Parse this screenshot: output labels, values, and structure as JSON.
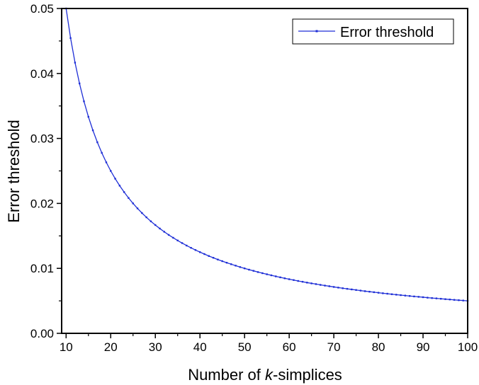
{
  "chart_data": {
    "type": "line",
    "xlabel_prefix": "Number of ",
    "xlabel_italic": "k",
    "xlabel_suffix": "-simplices",
    "ylabel": "Error threshold",
    "xlim": [
      9,
      100
    ],
    "ylim": [
      0,
      0.05
    ],
    "x_ticks": [
      "10",
      "20",
      "30",
      "40",
      "50",
      "60",
      "70",
      "80",
      "90",
      "100"
    ],
    "y_ticks": [
      "0.00",
      "0.01",
      "0.02",
      "0.03",
      "0.04",
      "0.05"
    ],
    "legend_position": "top-right",
    "grid": false,
    "series": [
      {
        "name": "Error threshold",
        "color": "#1f2fd6",
        "x": [
          10,
          11,
          12,
          13,
          14,
          15,
          16,
          17,
          18,
          19,
          20,
          21,
          22,
          23,
          24,
          25,
          26,
          27,
          28,
          29,
          30,
          31,
          32,
          33,
          34,
          35,
          36,
          37,
          38,
          39,
          40,
          41,
          42,
          43,
          44,
          45,
          46,
          47,
          48,
          49,
          50,
          51,
          52,
          53,
          54,
          55,
          56,
          57,
          58,
          59,
          60,
          61,
          62,
          63,
          64,
          65,
          66,
          67,
          68,
          69,
          70,
          71,
          72,
          73,
          74,
          75,
          76,
          77,
          78,
          79,
          80,
          81,
          82,
          83,
          84,
          85,
          86,
          87,
          88,
          89,
          90,
          91,
          92,
          93,
          94,
          95,
          96,
          97,
          98,
          99,
          100
        ],
        "y": [
          0.05,
          0.04545,
          0.04167,
          0.03846,
          0.03571,
          0.03333,
          0.03125,
          0.02941,
          0.02778,
          0.02632,
          0.025,
          0.02381,
          0.02273,
          0.02174,
          0.02083,
          0.02,
          0.01923,
          0.01852,
          0.01786,
          0.01724,
          0.01667,
          0.01613,
          0.01563,
          0.01515,
          0.01471,
          0.01429,
          0.01389,
          0.01351,
          0.01316,
          0.01282,
          0.0125,
          0.0122,
          0.0119,
          0.01163,
          0.01136,
          0.01111,
          0.01087,
          0.01064,
          0.01042,
          0.0102,
          0.01,
          0.0098,
          0.00962,
          0.00943,
          0.00926,
          0.00909,
          0.00893,
          0.00877,
          0.00862,
          0.00847,
          0.00833,
          0.0082,
          0.00806,
          0.00794,
          0.00781,
          0.00769,
          0.00758,
          0.00746,
          0.00735,
          0.00725,
          0.00714,
          0.00704,
          0.00694,
          0.00685,
          0.00676,
          0.00667,
          0.00658,
          0.00649,
          0.00641,
          0.00633,
          0.00625,
          0.00617,
          0.0061,
          0.00602,
          0.00595,
          0.00588,
          0.00581,
          0.00575,
          0.00568,
          0.00562,
          0.00556,
          0.00549,
          0.00543,
          0.00538,
          0.00532,
          0.00526,
          0.00521,
          0.00515,
          0.0051,
          0.00505,
          0.005
        ]
      }
    ]
  }
}
